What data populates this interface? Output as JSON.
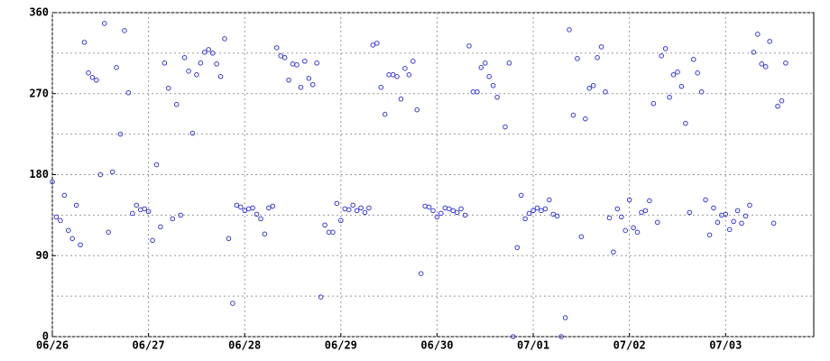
{
  "chart_data": {
    "type": "scatter",
    "color": "#3b3bd6",
    "grid": true,
    "xlim": [
      0,
      190
    ],
    "xticks": [
      {
        "value": 0,
        "label": "06/26"
      },
      {
        "value": 24,
        "label": "06/27"
      },
      {
        "value": 48,
        "label": "06/28"
      },
      {
        "value": 72,
        "label": "06/29"
      },
      {
        "value": 96,
        "label": "06/30"
      },
      {
        "value": 120,
        "label": "07/01"
      },
      {
        "value": 144,
        "label": "07/02"
      },
      {
        "value": 168,
        "label": "07/03"
      }
    ],
    "ylim": [
      0,
      360
    ],
    "yticks": [
      0,
      90,
      180,
      270,
      360
    ],
    "yminor": [
      45,
      135,
      225,
      315
    ],
    "x": [
      0,
      1,
      2,
      3,
      4,
      5,
      6,
      7,
      8,
      9,
      10,
      11,
      12,
      13,
      14,
      15,
      16,
      17,
      18,
      19,
      20,
      21,
      22,
      23,
      24,
      25,
      26,
      27,
      28,
      29,
      30,
      31,
      32,
      33,
      34,
      35,
      36,
      37,
      38,
      39,
      40,
      41,
      42,
      43,
      44,
      45,
      46,
      47,
      48,
      49,
      50,
      51,
      52,
      53,
      54,
      55,
      56,
      57,
      58,
      59,
      60,
      61,
      62,
      63,
      64,
      65,
      66,
      67,
      68,
      69,
      70,
      71,
      72,
      73,
      74,
      75,
      76,
      77,
      78,
      79,
      80,
      81,
      82,
      83,
      84,
      85,
      86,
      87,
      88,
      89,
      90,
      91,
      92,
      93,
      94,
      95,
      96,
      97,
      98,
      99,
      100,
      101,
      102,
      103,
      104,
      105,
      106,
      107,
      108,
      109,
      110,
      111,
      113,
      114,
      115,
      116,
      117,
      118,
      119,
      120,
      121,
      122,
      123,
      124,
      125,
      126,
      127,
      128,
      129,
      130,
      131,
      132,
      133,
      134,
      135,
      136,
      137,
      138,
      139,
      140,
      141,
      142,
      143,
      144,
      145,
      146,
      147,
      148,
      149,
      150,
      151,
      152,
      153,
      154,
      155,
      156,
      157,
      158,
      159,
      160,
      161,
      162,
      163,
      164,
      165,
      166,
      167,
      168,
      169,
      170,
      171,
      172,
      173,
      174,
      175,
      176,
      177,
      178,
      179,
      180,
      181,
      182,
      183
    ],
    "values": [
      172,
      133,
      129,
      157,
      118,
      109,
      146,
      102,
      327,
      293,
      288,
      285,
      180,
      348,
      116,
      183,
      299,
      225,
      340,
      271,
      137,
      146,
      141,
      142,
      139,
      107,
      191,
      122,
      304,
      276,
      131,
      258,
      135,
      310,
      295,
      226,
      291,
      304,
      316,
      319,
      315,
      303,
      289,
      331,
      109,
      37,
      146,
      144,
      140,
      142,
      143,
      136,
      131,
      114,
      143,
      145,
      321,
      312,
      310,
      285,
      303,
      302,
      277,
      306,
      287,
      280,
      304,
      44,
      124,
      116,
      116,
      148,
      129,
      142,
      141,
      146,
      140,
      143,
      138,
      143,
      324,
      326,
      277,
      247,
      291,
      291,
      289,
      264,
      298,
      291,
      306,
      252,
      70,
      145,
      144,
      140,
      133,
      137,
      143,
      142,
      140,
      138,
      142,
      135,
      323,
      272,
      272,
      299,
      304,
      289,
      279,
      266,
      233,
      304,
      0,
      99,
      157,
      131,
      137,
      140,
      143,
      140,
      142,
      152,
      136,
      134,
      0,
      21,
      341,
      246,
      309,
      111,
      242,
      276,
      279,
      310,
      322,
      272,
      132,
      94,
      142,
      133,
      118,
      152,
      121,
      116,
      138,
      140,
      151,
      259,
      127,
      312,
      320,
      266,
      291,
      294,
      278,
      237,
      138,
      308,
      293,
      272,
      152,
      113,
      143,
      127,
      135,
      136,
      119,
      128,
      140,
      126,
      134,
      146,
      316,
      336,
      303,
      300,
      328,
      126,
      256,
      262,
      304
    ]
  }
}
